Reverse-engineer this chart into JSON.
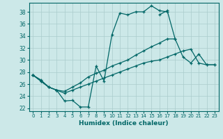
{
  "xlabel": "Humidex (Indice chaleur)",
  "xlim": [
    -0.5,
    23.5
  ],
  "ylim": [
    21.5,
    39.5
  ],
  "yticks": [
    22,
    24,
    26,
    28,
    30,
    32,
    34,
    36,
    38
  ],
  "xticks": [
    0,
    1,
    2,
    3,
    4,
    5,
    6,
    7,
    8,
    9,
    10,
    11,
    12,
    13,
    14,
    15,
    16,
    17,
    18,
    19,
    20,
    21,
    22,
    23
  ],
  "background_color": "#cce8e8",
  "grid_color": "#aacccc",
  "line_color": "#006666",
  "line1_y": [
    27.5,
    26.7,
    25.5,
    25.0,
    23.2,
    23.3,
    22.2,
    22.2,
    29.0,
    26.5,
    34.2,
    37.8,
    37.5,
    38.0,
    38.0,
    39.0,
    38.2,
    38.0,
    null,
    null,
    null,
    null,
    null,
    null
  ],
  "line2_y": [
    27.5,
    null,
    null,
    null,
    null,
    null,
    null,
    null,
    null,
    null,
    null,
    null,
    null,
    null,
    null,
    null,
    37.5,
    38.2,
    33.5,
    30.5,
    29.5,
    31.0,
    29.2,
    29.2
  ],
  "line3_y": [
    27.5,
    26.5,
    25.5,
    25.0,
    24.8,
    25.5,
    26.2,
    27.2,
    27.8,
    28.3,
    29.0,
    29.5,
    30.0,
    30.8,
    31.5,
    32.2,
    32.8,
    33.5,
    33.5,
    null,
    null,
    null,
    null,
    null
  ],
  "line4_y": [
    27.5,
    26.5,
    25.5,
    25.0,
    24.5,
    25.0,
    25.5,
    26.0,
    26.5,
    27.0,
    27.5,
    28.0,
    28.5,
    29.0,
    29.5,
    29.8,
    30.0,
    30.5,
    31.0,
    31.5,
    31.8,
    29.5,
    29.2,
    29.2
  ]
}
